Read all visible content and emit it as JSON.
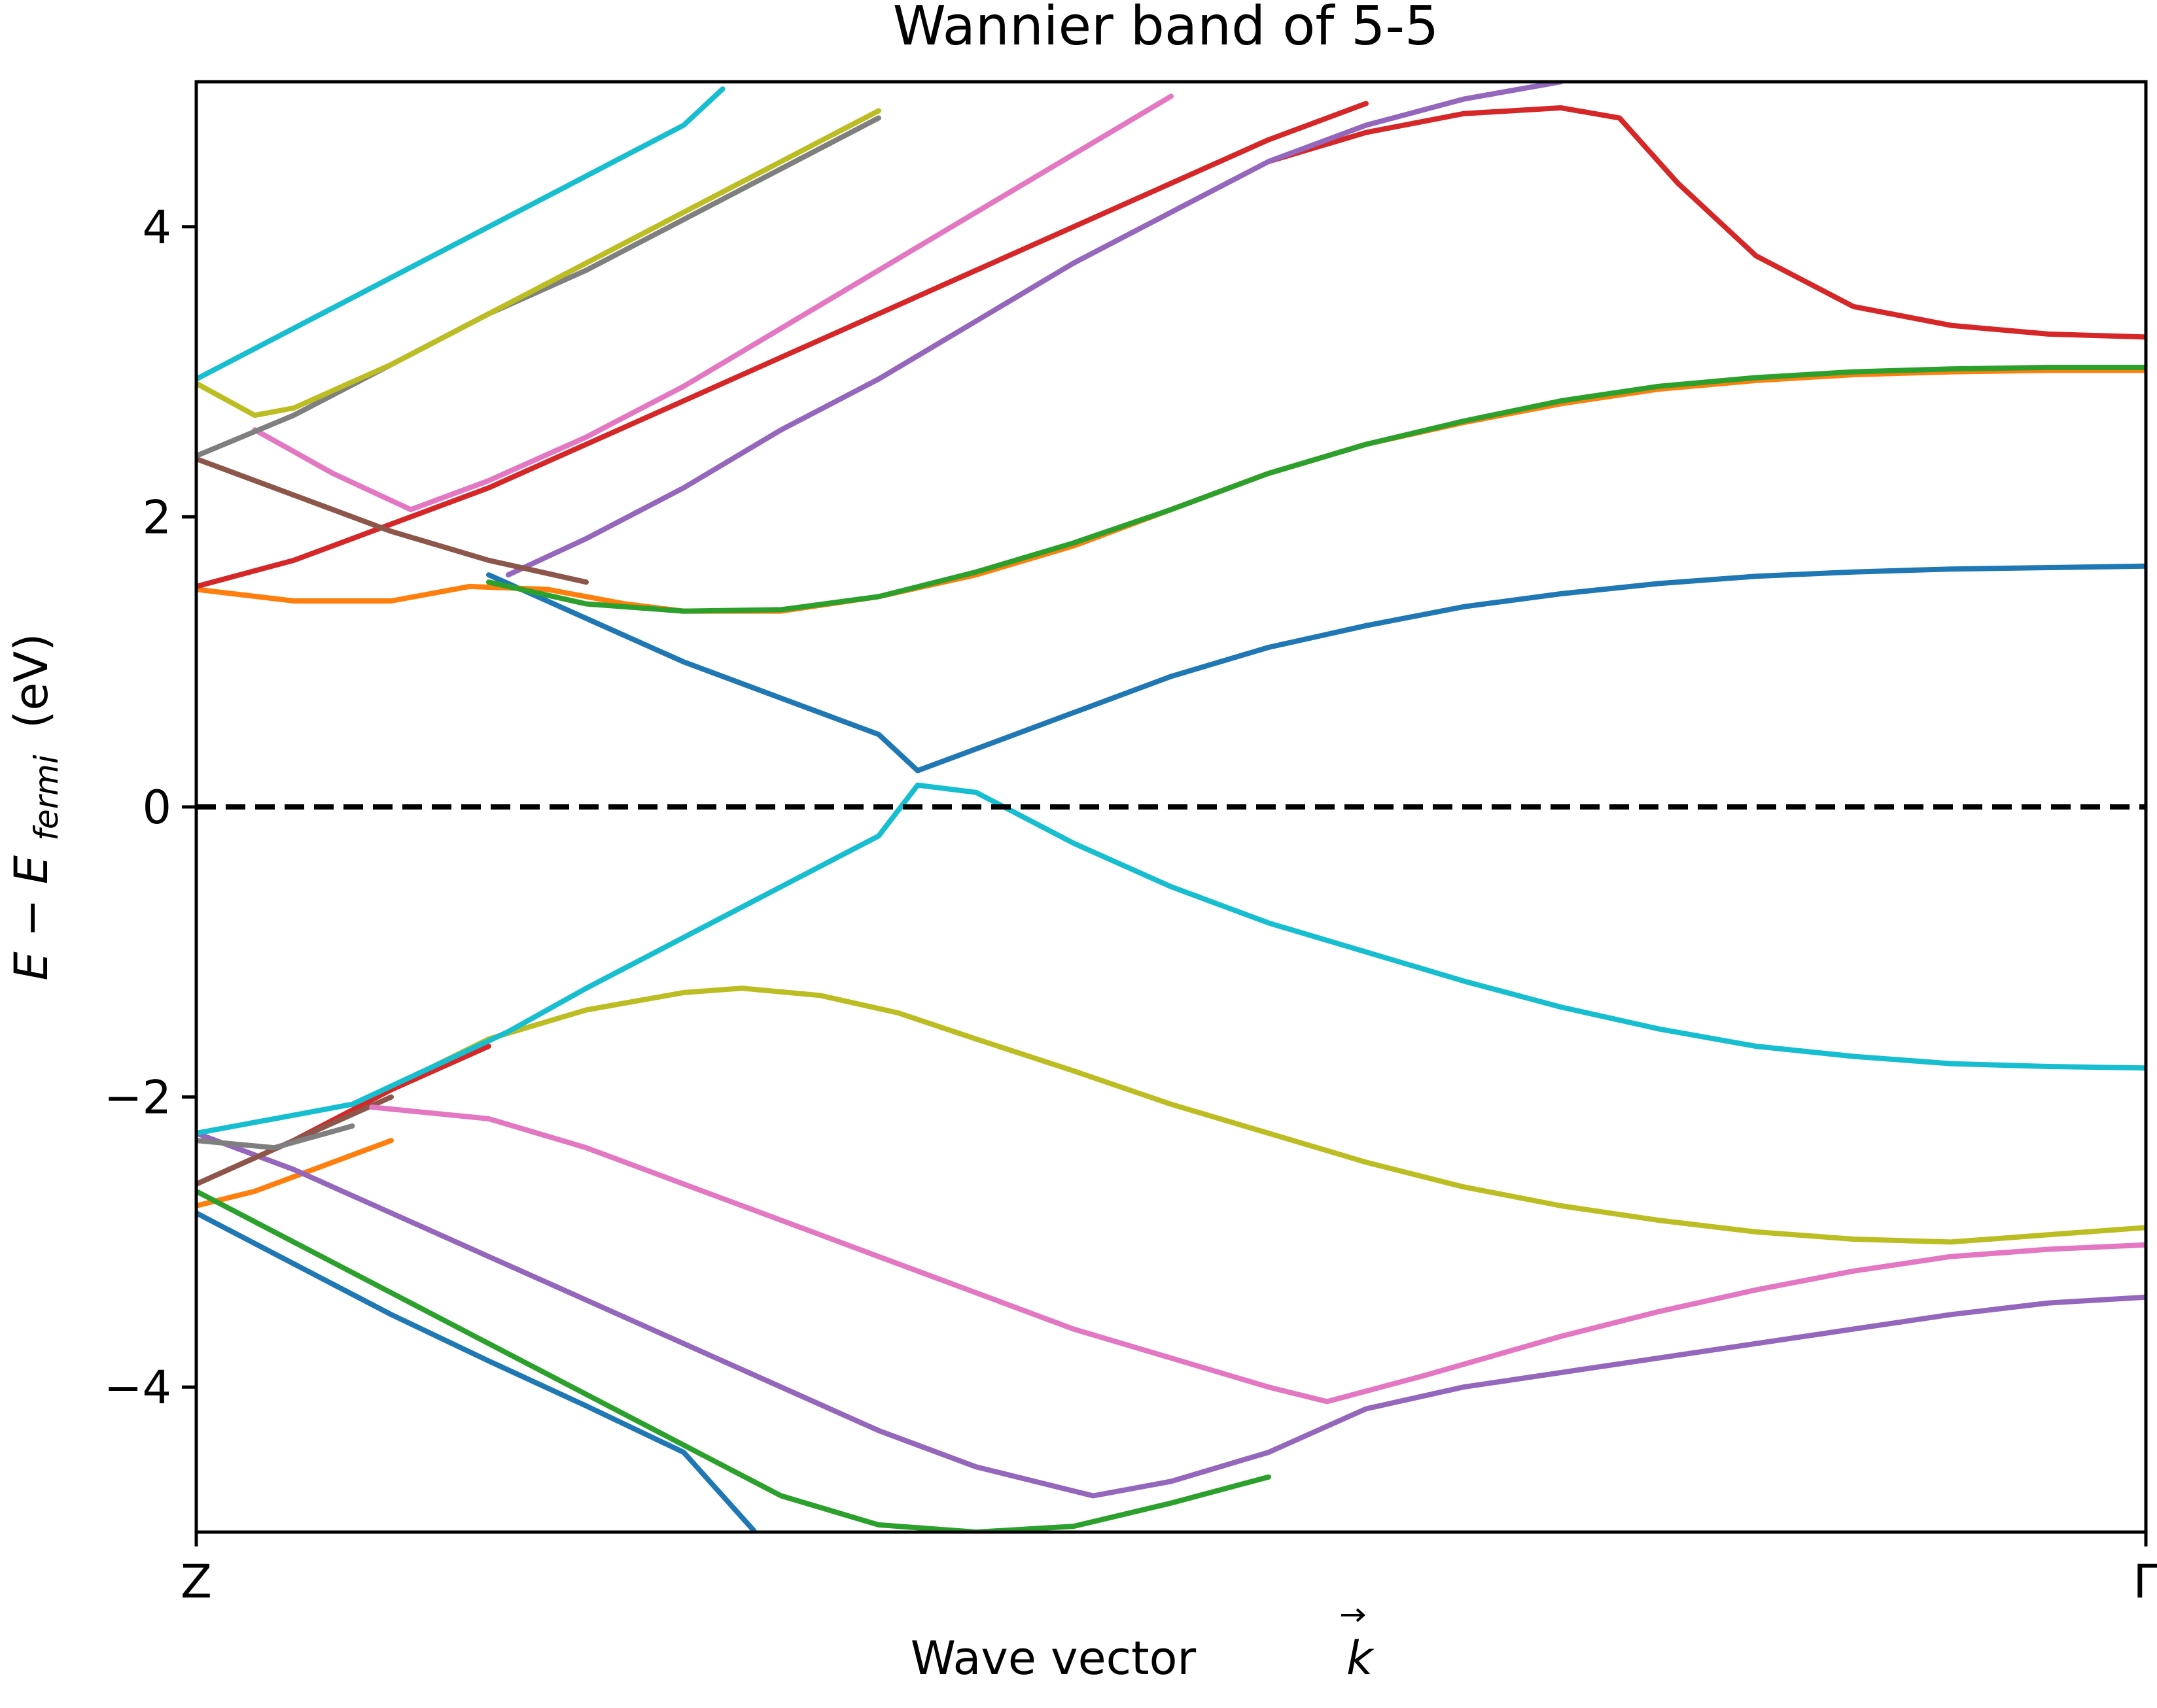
{
  "chart_data": {
    "type": "line",
    "title": "Wannier band of 5-5",
    "xlabel": "Wave vector",
    "xlabel_symbol": "k",
    "ylabel": {
      "prefix": "E − E",
      "subscript": "fermi",
      "suffix": "(eV)"
    },
    "x_ticks": [
      "Z",
      "Γ"
    ],
    "xlim": [
      0,
      1
    ],
    "ylim": [
      -5,
      5
    ],
    "y_ticks": [
      {
        "value": 4,
        "label": "4"
      },
      {
        "value": 2,
        "label": "2"
      },
      {
        "value": 0,
        "label": "0"
      },
      {
        "value": -2,
        "label": "−2"
      },
      {
        "value": -4,
        "label": "−4"
      }
    ],
    "fermi_level": {
      "y": 0,
      "style": "dashed",
      "color": "#000000"
    },
    "grid": false,
    "legend": false,
    "colors": {
      "blue": "#1f77b4",
      "orange": "#ff7f0e",
      "green": "#2ca02c",
      "red": "#d62728",
      "purple": "#9467bd",
      "brown": "#8c564b",
      "pink": "#e377c2",
      "gray": "#7f7f7f",
      "olive": "#bcbd22",
      "cyan": "#17becf"
    },
    "series": [
      {
        "color": "blue",
        "points": [
          [
            0,
            -2.8
          ],
          [
            0.05,
            -3.15
          ],
          [
            0.1,
            -3.5
          ],
          [
            0.15,
            -3.82
          ],
          [
            0.2,
            -4.13
          ],
          [
            0.25,
            -4.45
          ],
          [
            0.286,
            -4.99
          ]
        ]
      },
      {
        "color": "orange",
        "points": [
          [
            0,
            -2.75
          ],
          [
            0.03,
            -2.65
          ],
          [
            0.06,
            -2.5
          ],
          [
            0.1,
            -2.3
          ]
        ]
      },
      {
        "color": "green",
        "points": [
          [
            0,
            -2.65
          ],
          [
            0.05,
            -3.0
          ],
          [
            0.1,
            -3.35
          ],
          [
            0.15,
            -3.7
          ],
          [
            0.2,
            -4.05
          ],
          [
            0.25,
            -4.4
          ],
          [
            0.3,
            -4.75
          ],
          [
            0.35,
            -4.95
          ],
          [
            0.4,
            -5.0
          ],
          [
            0.45,
            -4.96
          ],
          [
            0.5,
            -4.8
          ],
          [
            0.55,
            -4.62
          ]
        ]
      },
      {
        "color": "red",
        "points": [
          [
            0,
            -2.6
          ],
          [
            0.05,
            -2.3
          ],
          [
            0.1,
            -1.95
          ],
          [
            0.15,
            -1.65
          ]
        ]
      },
      {
        "color": "purple",
        "points": [
          [
            0,
            -2.25
          ],
          [
            0.05,
            -2.5
          ],
          [
            0.1,
            -2.8
          ],
          [
            0.15,
            -3.1
          ],
          [
            0.2,
            -3.4
          ],
          [
            0.25,
            -3.7
          ],
          [
            0.3,
            -4.0
          ],
          [
            0.35,
            -4.3
          ],
          [
            0.4,
            -4.55
          ],
          [
            0.46,
            -4.75
          ],
          [
            0.5,
            -4.65
          ],
          [
            0.55,
            -4.45
          ],
          [
            0.6,
            -4.15
          ],
          [
            0.65,
            -4.0
          ],
          [
            0.7,
            -3.9
          ],
          [
            0.75,
            -3.8
          ],
          [
            0.8,
            -3.7
          ],
          [
            0.85,
            -3.6
          ],
          [
            0.9,
            -3.5
          ],
          [
            0.95,
            -3.42
          ],
          [
            1.0,
            -3.38
          ]
        ]
      },
      {
        "color": "brown",
        "points": [
          [
            0,
            -2.6
          ],
          [
            0.05,
            -2.3
          ],
          [
            0.1,
            -2.0
          ]
        ]
      },
      {
        "color": "pink",
        "points": [
          [
            0.09,
            -2.07
          ],
          [
            0.15,
            -2.15
          ],
          [
            0.2,
            -2.35
          ],
          [
            0.25,
            -2.6
          ],
          [
            0.3,
            -2.85
          ],
          [
            0.35,
            -3.1
          ],
          [
            0.4,
            -3.35
          ],
          [
            0.45,
            -3.6
          ],
          [
            0.5,
            -3.8
          ],
          [
            0.55,
            -4.0
          ],
          [
            0.58,
            -4.1
          ],
          [
            0.63,
            -3.92
          ],
          [
            0.7,
            -3.65
          ],
          [
            0.75,
            -3.48
          ],
          [
            0.8,
            -3.33
          ],
          [
            0.85,
            -3.2
          ],
          [
            0.9,
            -3.1
          ],
          [
            0.95,
            -3.05
          ],
          [
            1.0,
            -3.02
          ]
        ]
      },
      {
        "color": "gray",
        "points": [
          [
            0,
            -2.3
          ],
          [
            0.04,
            -2.35
          ],
          [
            0.08,
            -2.2
          ]
        ]
      },
      {
        "color": "olive",
        "points": [
          [
            0.12,
            -1.8
          ],
          [
            0.15,
            -1.6
          ],
          [
            0.2,
            -1.4
          ],
          [
            0.25,
            -1.28
          ],
          [
            0.28,
            -1.25
          ],
          [
            0.32,
            -1.3
          ],
          [
            0.36,
            -1.42
          ],
          [
            0.4,
            -1.6
          ],
          [
            0.45,
            -1.82
          ],
          [
            0.5,
            -2.05
          ],
          [
            0.55,
            -2.25
          ],
          [
            0.6,
            -2.45
          ],
          [
            0.65,
            -2.62
          ],
          [
            0.7,
            -2.75
          ],
          [
            0.75,
            -2.85
          ],
          [
            0.8,
            -2.93
          ],
          [
            0.85,
            -2.98
          ],
          [
            0.9,
            -3.0
          ],
          [
            0.95,
            -2.95
          ],
          [
            1.0,
            -2.9
          ]
        ]
      },
      {
        "color": "cyan",
        "points": [
          [
            0,
            -2.25
          ],
          [
            0.04,
            -2.15
          ],
          [
            0.08,
            -2.05
          ],
          [
            0.12,
            -1.8
          ],
          [
            0.16,
            -1.55
          ],
          [
            0.2,
            -1.25
          ],
          [
            0.25,
            -0.9
          ],
          [
            0.3,
            -0.55
          ],
          [
            0.35,
            -0.2
          ],
          [
            0.37,
            0.15
          ],
          [
            0.4,
            0.1
          ],
          [
            0.45,
            -0.25
          ],
          [
            0.5,
            -0.55
          ],
          [
            0.55,
            -0.8
          ],
          [
            0.6,
            -1.0
          ],
          [
            0.65,
            -1.2
          ],
          [
            0.7,
            -1.38
          ],
          [
            0.75,
            -1.53
          ],
          [
            0.8,
            -1.65
          ],
          [
            0.85,
            -1.72
          ],
          [
            0.9,
            -1.77
          ],
          [
            0.95,
            -1.79
          ],
          [
            1.0,
            -1.8
          ]
        ]
      },
      {
        "color": "blue",
        "points": [
          [
            0.37,
            0.25
          ],
          [
            0.4,
            0.4
          ],
          [
            0.45,
            0.65
          ],
          [
            0.5,
            0.9
          ],
          [
            0.55,
            1.1
          ],
          [
            0.6,
            1.25
          ],
          [
            0.65,
            1.38
          ],
          [
            0.7,
            1.47
          ],
          [
            0.75,
            1.54
          ],
          [
            0.8,
            1.59
          ],
          [
            0.85,
            1.62
          ],
          [
            0.9,
            1.64
          ],
          [
            0.95,
            1.65
          ],
          [
            1.0,
            1.66
          ]
        ]
      },
      {
        "color": "blue",
        "points": [
          [
            0.15,
            1.6
          ],
          [
            0.2,
            1.3
          ],
          [
            0.25,
            1.0
          ],
          [
            0.3,
            0.75
          ],
          [
            0.35,
            0.5
          ],
          [
            0.37,
            0.25
          ]
        ]
      },
      {
        "color": "orange",
        "points": [
          [
            0,
            1.5
          ],
          [
            0.05,
            1.42
          ],
          [
            0.1,
            1.42
          ],
          [
            0.14,
            1.52
          ],
          [
            0.18,
            1.5
          ],
          [
            0.22,
            1.4
          ],
          [
            0.25,
            1.35
          ],
          [
            0.3,
            1.35
          ],
          [
            0.35,
            1.45
          ],
          [
            0.4,
            1.6
          ],
          [
            0.45,
            1.8
          ],
          [
            0.5,
            2.05
          ],
          [
            0.55,
            2.3
          ],
          [
            0.6,
            2.5
          ],
          [
            0.65,
            2.65
          ],
          [
            0.7,
            2.78
          ],
          [
            0.75,
            2.88
          ],
          [
            0.8,
            2.94
          ],
          [
            0.85,
            2.98
          ],
          [
            0.9,
            3.0
          ],
          [
            0.95,
            3.01
          ],
          [
            1.0,
            3.01
          ]
        ]
      },
      {
        "color": "green",
        "points": [
          [
            0.15,
            1.55
          ],
          [
            0.2,
            1.4
          ],
          [
            0.25,
            1.35
          ],
          [
            0.3,
            1.36
          ],
          [
            0.35,
            1.45
          ],
          [
            0.4,
            1.62
          ],
          [
            0.45,
            1.82
          ],
          [
            0.5,
            2.05
          ],
          [
            0.55,
            2.3
          ],
          [
            0.6,
            2.5
          ],
          [
            0.65,
            2.66
          ],
          [
            0.7,
            2.8
          ],
          [
            0.75,
            2.9
          ],
          [
            0.8,
            2.96
          ],
          [
            0.85,
            3.0
          ],
          [
            0.9,
            3.02
          ],
          [
            0.95,
            3.03
          ],
          [
            1.0,
            3.03
          ]
        ]
      },
      {
        "color": "red",
        "points": [
          [
            0,
            1.52
          ],
          [
            0.05,
            1.7
          ],
          [
            0.1,
            1.95
          ],
          [
            0.15,
            2.2
          ],
          [
            0.2,
            2.5
          ],
          [
            0.25,
            2.8
          ],
          [
            0.3,
            3.1
          ],
          [
            0.35,
            3.4
          ],
          [
            0.4,
            3.7
          ],
          [
            0.45,
            4.0
          ],
          [
            0.5,
            4.3
          ],
          [
            0.55,
            4.6
          ],
          [
            0.6,
            4.85
          ]
        ]
      },
      {
        "color": "red",
        "points": [
          [
            0.55,
            4.45
          ],
          [
            0.6,
            4.65
          ],
          [
            0.65,
            4.78
          ],
          [
            0.7,
            4.82
          ],
          [
            0.73,
            4.75
          ],
          [
            0.76,
            4.3
          ],
          [
            0.8,
            3.8
          ],
          [
            0.85,
            3.45
          ],
          [
            0.9,
            3.32
          ],
          [
            0.95,
            3.26
          ],
          [
            1.0,
            3.24
          ]
        ]
      },
      {
        "color": "purple",
        "points": [
          [
            0.16,
            1.6
          ],
          [
            0.2,
            1.85
          ],
          [
            0.25,
            2.2
          ],
          [
            0.3,
            2.6
          ],
          [
            0.35,
            2.95
          ],
          [
            0.4,
            3.35
          ],
          [
            0.45,
            3.75
          ],
          [
            0.5,
            4.1
          ],
          [
            0.55,
            4.45
          ],
          [
            0.6,
            4.7
          ],
          [
            0.65,
            4.88
          ],
          [
            0.7,
            5.0
          ]
        ]
      },
      {
        "color": "brown",
        "points": [
          [
            0,
            2.4
          ],
          [
            0.05,
            2.15
          ],
          [
            0.1,
            1.9
          ],
          [
            0.15,
            1.7
          ],
          [
            0.2,
            1.55
          ]
        ]
      },
      {
        "color": "pink",
        "points": [
          [
            0.03,
            2.6
          ],
          [
            0.07,
            2.3
          ],
          [
            0.11,
            2.05
          ],
          [
            0.15,
            2.25
          ],
          [
            0.2,
            2.55
          ],
          [
            0.25,
            2.9
          ],
          [
            0.3,
            3.3
          ],
          [
            0.35,
            3.7
          ],
          [
            0.4,
            4.1
          ],
          [
            0.45,
            4.5
          ],
          [
            0.5,
            4.9
          ]
        ]
      },
      {
        "color": "gray",
        "points": [
          [
            0,
            2.42
          ],
          [
            0.05,
            2.7
          ],
          [
            0.1,
            3.05
          ],
          [
            0.15,
            3.4
          ],
          [
            0.2,
            3.7
          ],
          [
            0.25,
            4.05
          ],
          [
            0.3,
            4.4
          ],
          [
            0.35,
            4.75
          ]
        ]
      },
      {
        "color": "olive",
        "points": [
          [
            0,
            2.92
          ],
          [
            0.03,
            2.7
          ],
          [
            0.05,
            2.75
          ],
          [
            0.1,
            3.05
          ],
          [
            0.15,
            3.4
          ],
          [
            0.2,
            3.75
          ],
          [
            0.25,
            4.1
          ],
          [
            0.3,
            4.45
          ],
          [
            0.35,
            4.8
          ]
        ]
      },
      {
        "color": "cyan",
        "points": [
          [
            0,
            2.95
          ],
          [
            0.05,
            3.3
          ],
          [
            0.1,
            3.65
          ],
          [
            0.15,
            4.0
          ],
          [
            0.2,
            4.35
          ],
          [
            0.25,
            4.7
          ],
          [
            0.27,
            4.95
          ]
        ]
      }
    ]
  }
}
